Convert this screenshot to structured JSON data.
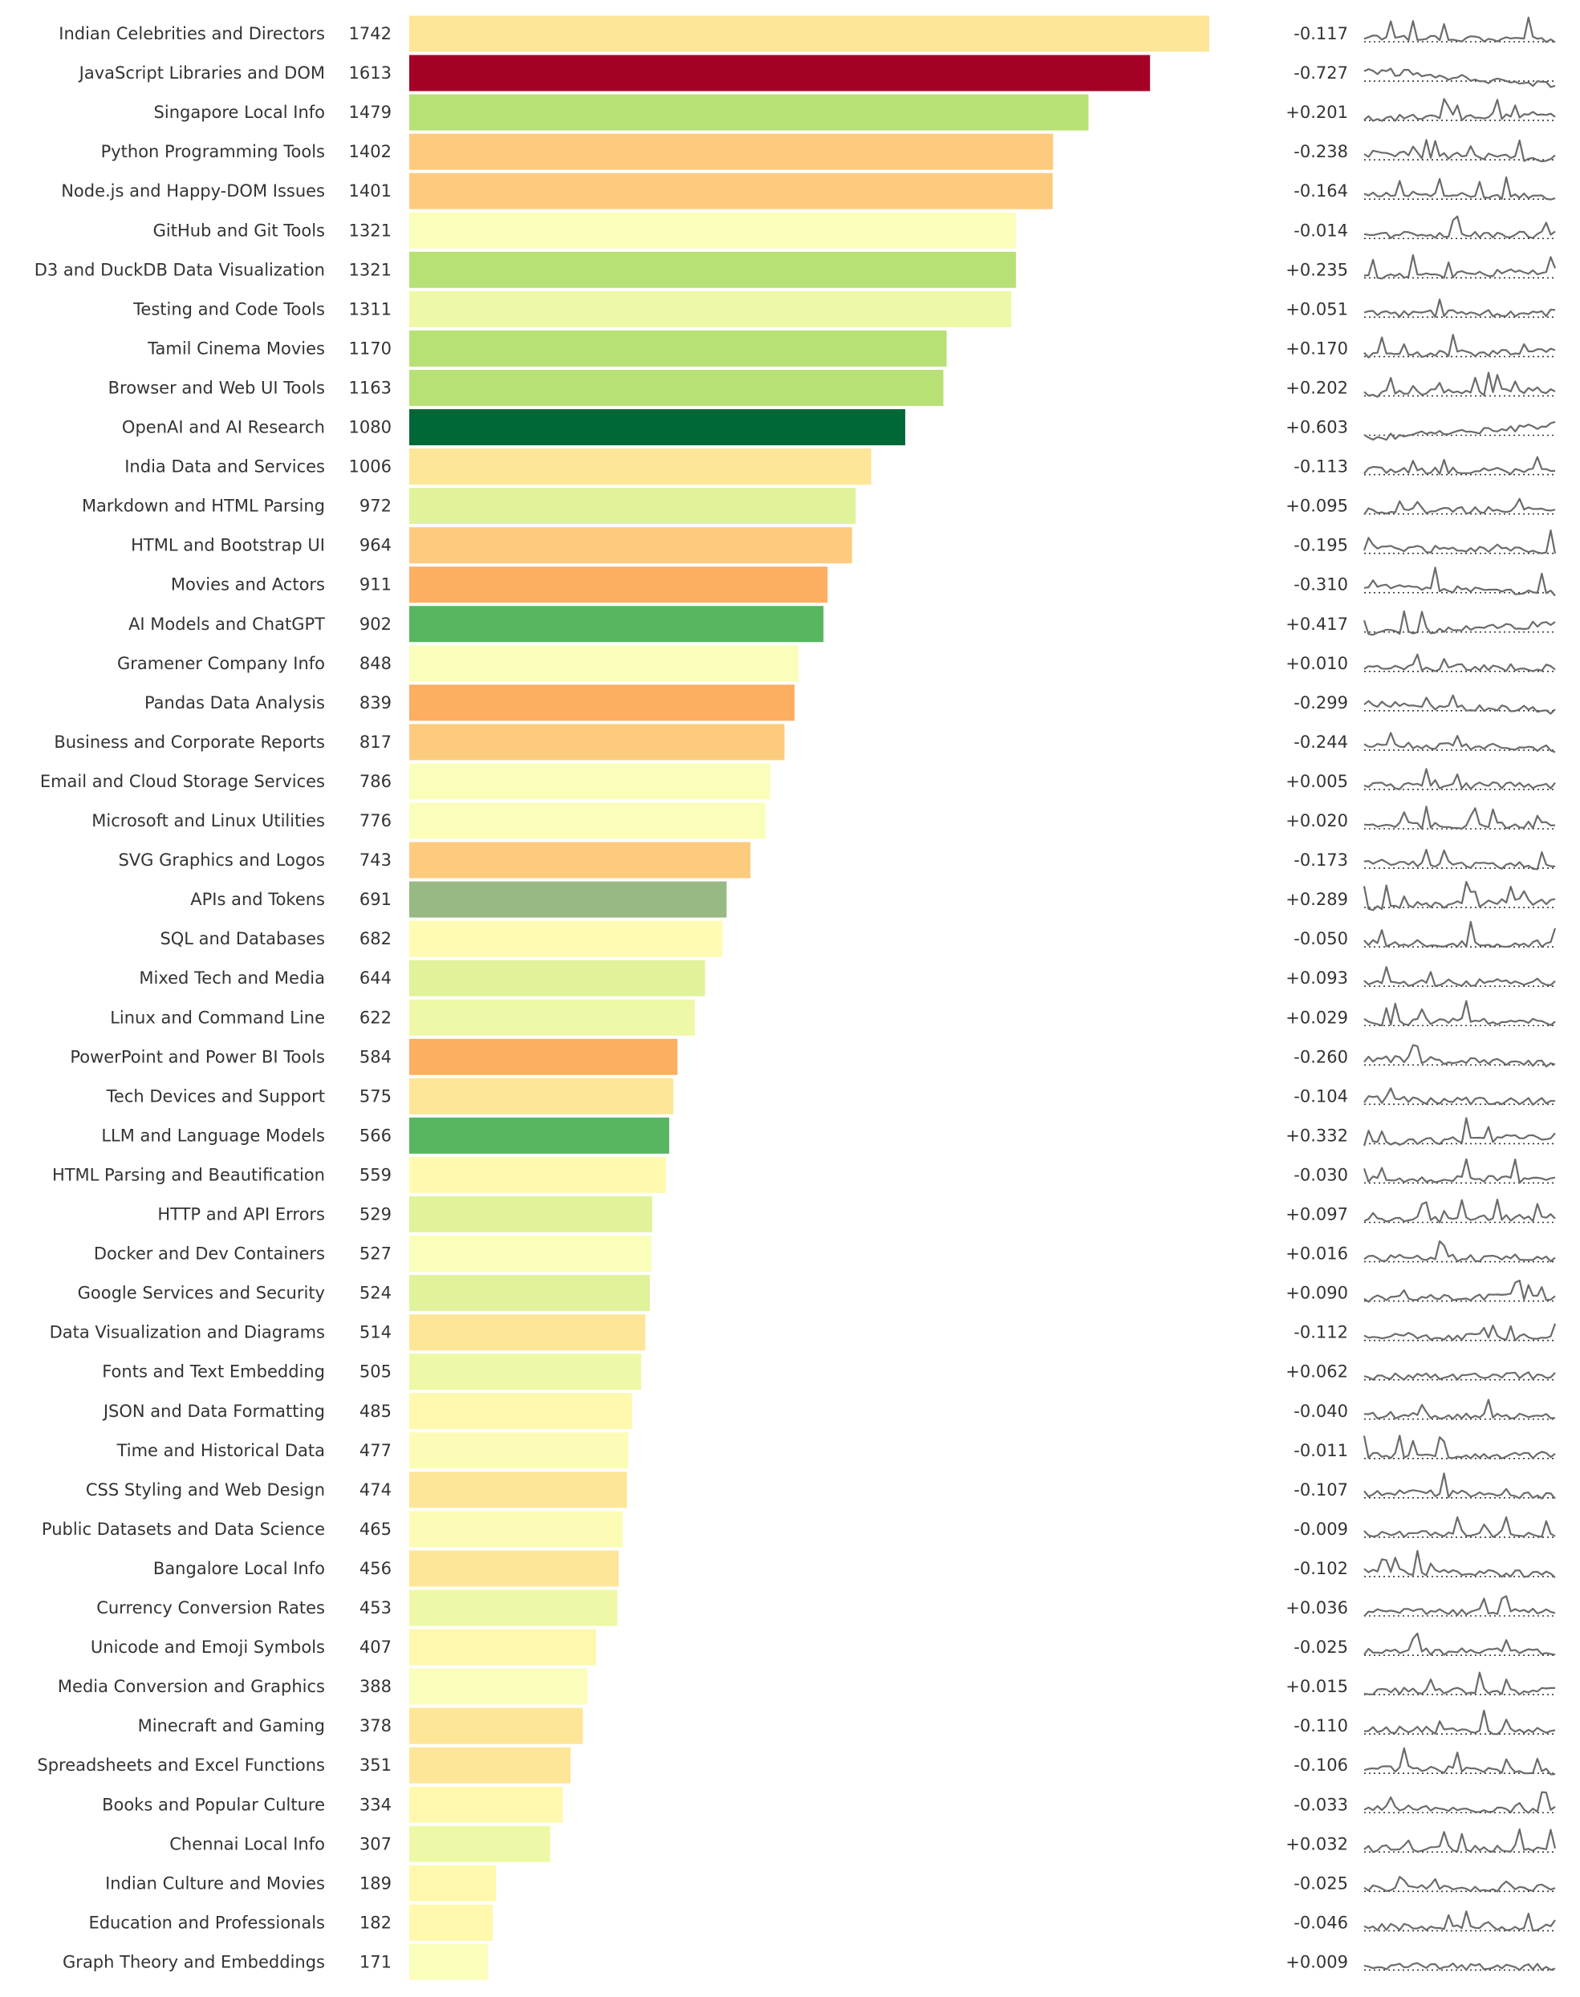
{
  "chart_data": {
    "type": "bar",
    "orientation": "horizontal",
    "categories": [
      "Indian Celebrities and Directors",
      "JavaScript Libraries and DOM",
      "Singapore Local Info",
      "Python Programming Tools",
      "Node.js and Happy-DOM Issues",
      "GitHub and Git Tools",
      "D3 and DuckDB Data Visualization",
      "Testing and Code Tools",
      "Tamil Cinema Movies",
      "Browser and Web UI Tools",
      "OpenAI and AI Research",
      "India Data and Services",
      "Markdown and HTML Parsing",
      "HTML and Bootstrap UI",
      "Movies and Actors",
      "AI Models and ChatGPT",
      "Gramener Company Info",
      "Pandas Data Analysis",
      "Business and Corporate Reports",
      "Email and Cloud Storage Services",
      "Microsoft and Linux Utilities",
      "SVG Graphics and Logos",
      "APIs and Tokens",
      "SQL and Databases",
      "Mixed Tech and Media",
      "Linux and Command Line",
      "PowerPoint and Power BI Tools",
      "Tech Devices and Support",
      "LLM and Language Models",
      "HTML Parsing and Beautification",
      "HTTP and API Errors",
      "Docker and Dev Containers",
      "Google Services and Security",
      "Data Visualization and Diagrams",
      "Fonts and Text Embedding",
      "JSON and Data Formatting",
      "Time and Historical Data",
      "CSS Styling and Web Design",
      "Public Datasets and Data Science",
      "Bangalore Local Info",
      "Currency Conversion Rates",
      "Unicode and Emoji Symbols",
      "Media Conversion and Graphics",
      "Minecraft and Gaming",
      "Spreadsheets and Excel Functions",
      "Books and Popular Culture",
      "Chennai Local Info",
      "Indian Culture and Movies",
      "Education and Professionals",
      "Graph Theory and Embeddings"
    ],
    "values": [
      1742,
      1613,
      1479,
      1402,
      1401,
      1321,
      1321,
      1311,
      1170,
      1163,
      1080,
      1006,
      972,
      964,
      911,
      902,
      848,
      839,
      817,
      786,
      776,
      743,
      691,
      682,
      644,
      622,
      584,
      575,
      566,
      559,
      529,
      527,
      524,
      514,
      505,
      485,
      477,
      474,
      465,
      456,
      453,
      407,
      388,
      378,
      351,
      334,
      307,
      189,
      182,
      171
    ],
    "value_labels": [
      "1742",
      "1613",
      "1479",
      "1402",
      "1401",
      "1321",
      "1321",
      "1311",
      "1170",
      "1163",
      "1080",
      "1006",
      "972",
      "964",
      "911",
      "902",
      "848",
      "839",
      "817",
      "786",
      "776",
      "743",
      "691",
      "682",
      "644",
      "622",
      "584",
      "575",
      "566",
      "559",
      "529",
      "527",
      "524",
      "514",
      "505",
      "485",
      "477",
      "474",
      "465",
      "456",
      "453",
      "407",
      "388",
      "378",
      "351",
      "334",
      "307",
      "189",
      "182",
      "171"
    ],
    "trend_labels": [
      "-0.117",
      "-0.727",
      "+0.201",
      "-0.238",
      "-0.164",
      "-0.014",
      "+0.235",
      "+0.051",
      "+0.170",
      "+0.202",
      "+0.603",
      "-0.113",
      "+0.095",
      "-0.195",
      "-0.310",
      "+0.417",
      "+0.010",
      "-0.299",
      "-0.244",
      "+0.005",
      "+0.020",
      "-0.173",
      "+0.289",
      "-0.050",
      "+0.093",
      "+0.029",
      "-0.260",
      "-0.104",
      "+0.332",
      "-0.030",
      "+0.097",
      "+0.016",
      "+0.090",
      "-0.112",
      "+0.062",
      "-0.040",
      "-0.011",
      "-0.107",
      "-0.009",
      "-0.102",
      "+0.036",
      "-0.025",
      "+0.015",
      "-0.110",
      "-0.106",
      "-0.033",
      "+0.032",
      "-0.025",
      "-0.046",
      "+0.009"
    ],
    "bar_colors": [
      "#fee698",
      "#a50026",
      "#b7e075",
      "#fdcb7e",
      "#fdcb7e",
      "#fbfdba",
      "#b7e075",
      "#eff8a6",
      "#b7e075",
      "#b7e075",
      "#006837",
      "#fee698",
      "#e0f29a",
      "#fdcb7e",
      "#fdae61",
      "#57b65f",
      "#fbfdba",
      "#fdae61",
      "#fdcb7e",
      "#fbfdba",
      "#fbfdba",
      "#fdcb7e",
      "#98b983",
      "#fffbb2",
      "#e0f29a",
      "#eff8a6",
      "#fdae61",
      "#fee698",
      "#57b65f",
      "#fffab0",
      "#e0f29a",
      "#fbfdba",
      "#e0f29a",
      "#fee698",
      "#eff8a6",
      "#fff8ad",
      "#fcfcb6",
      "#fee698",
      "#fcfcb6",
      "#fee698",
      "#eff8a6",
      "#fff8ad",
      "#fbfdba",
      "#fee698",
      "#fee698",
      "#fff8ad",
      "#eff8a6",
      "#fff8ad",
      "#fff8ad",
      "#fbfdba"
    ],
    "xlim": [
      0,
      1742
    ],
    "grid": false,
    "legend": "none",
    "sparkline_color": "#6b6b6b",
    "sparkline_baseline": "dotted"
  }
}
